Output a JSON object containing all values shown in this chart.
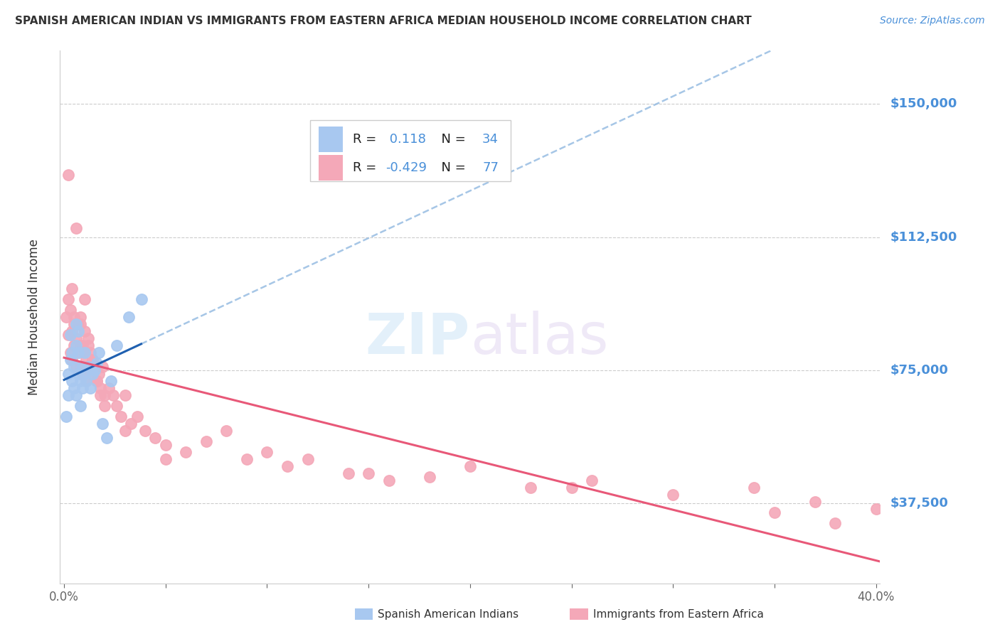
{
  "title": "SPANISH AMERICAN INDIAN VS IMMIGRANTS FROM EASTERN AFRICA MEDIAN HOUSEHOLD INCOME CORRELATION CHART",
  "source": "Source: ZipAtlas.com",
  "ylabel": "Median Household Income",
  "ytick_labels": [
    "$150,000",
    "$112,500",
    "$75,000",
    "$37,500"
  ],
  "ytick_values": [
    150000,
    112500,
    75000,
    37500
  ],
  "ylim": [
    15000,
    165000
  ],
  "xlim": [
    -0.002,
    0.402
  ],
  "blue_accent": "#4a90d9",
  "blue_scatter": "#a8c8f0",
  "pink_scatter": "#f4a8b8",
  "trendline_blue_solid": "#2060b0",
  "trendline_blue_dashed": "#90b8e0",
  "trendline_pink_solid": "#e85878",
  "R_blue": 0.118,
  "N_blue": 34,
  "R_pink": -0.429,
  "N_pink": 77,
  "blue_points_x": [
    0.001,
    0.002,
    0.002,
    0.003,
    0.003,
    0.004,
    0.004,
    0.005,
    0.005,
    0.006,
    0.006,
    0.006,
    0.007,
    0.007,
    0.007,
    0.008,
    0.008,
    0.009,
    0.009,
    0.01,
    0.01,
    0.011,
    0.012,
    0.013,
    0.014,
    0.015,
    0.016,
    0.017,
    0.019,
    0.021,
    0.023,
    0.026,
    0.032,
    0.038
  ],
  "blue_points_y": [
    62000,
    68000,
    74000,
    78000,
    85000,
    72000,
    80000,
    70000,
    76000,
    82000,
    88000,
    68000,
    74000,
    80000,
    86000,
    65000,
    72000,
    70000,
    76000,
    74000,
    80000,
    72000,
    76000,
    70000,
    74000,
    75000,
    77000,
    80000,
    60000,
    56000,
    72000,
    82000,
    90000,
    95000
  ],
  "pink_points_x": [
    0.001,
    0.002,
    0.002,
    0.003,
    0.003,
    0.004,
    0.004,
    0.005,
    0.005,
    0.005,
    0.006,
    0.006,
    0.007,
    0.007,
    0.008,
    0.008,
    0.008,
    0.009,
    0.009,
    0.01,
    0.01,
    0.011,
    0.011,
    0.012,
    0.012,
    0.013,
    0.013,
    0.014,
    0.015,
    0.016,
    0.017,
    0.018,
    0.019,
    0.02,
    0.022,
    0.024,
    0.026,
    0.028,
    0.03,
    0.033,
    0.036,
    0.04,
    0.045,
    0.05,
    0.06,
    0.07,
    0.08,
    0.09,
    0.1,
    0.11,
    0.12,
    0.14,
    0.16,
    0.18,
    0.2,
    0.23,
    0.26,
    0.3,
    0.34,
    0.37,
    0.4,
    0.002,
    0.004,
    0.006,
    0.008,
    0.01,
    0.012,
    0.014,
    0.016,
    0.018,
    0.02,
    0.03,
    0.05,
    0.15,
    0.25,
    0.35,
    0.38
  ],
  "pink_points_y": [
    90000,
    85000,
    95000,
    80000,
    92000,
    86000,
    78000,
    88000,
    82000,
    90000,
    84000,
    76000,
    80000,
    88000,
    82000,
    76000,
    90000,
    74000,
    82000,
    80000,
    86000,
    72000,
    78000,
    76000,
    84000,
    74000,
    80000,
    78000,
    76000,
    72000,
    74000,
    70000,
    76000,
    68000,
    70000,
    68000,
    65000,
    62000,
    68000,
    60000,
    62000,
    58000,
    56000,
    54000,
    52000,
    55000,
    58000,
    50000,
    52000,
    48000,
    50000,
    46000,
    44000,
    45000,
    48000,
    42000,
    44000,
    40000,
    42000,
    38000,
    36000,
    130000,
    98000,
    115000,
    88000,
    95000,
    82000,
    78000,
    72000,
    68000,
    65000,
    58000,
    50000,
    46000,
    42000,
    35000,
    32000
  ]
}
